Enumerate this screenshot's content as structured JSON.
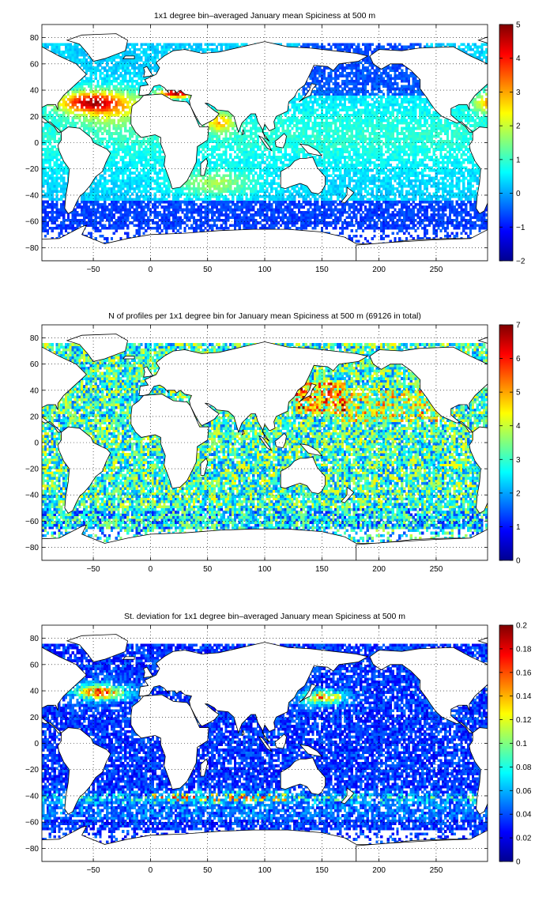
{
  "figure": {
    "background": "#ffffff",
    "colormap": "jet",
    "land_color": "#ffffff",
    "coastline_color": "#000000",
    "grid": "dotted"
  },
  "chart_data": [
    {
      "type": "heatmap",
      "title": "1x1 degree bin–averaged January mean Spiciness at 500 m",
      "xlim": [
        -95,
        295
      ],
      "ylim": [
        -90,
        90
      ],
      "x_ticks": [
        -50,
        0,
        50,
        100,
        150,
        200,
        250
      ],
      "y_ticks": [
        80,
        60,
        40,
        20,
        0,
        -20,
        -40,
        -60,
        -80
      ],
      "x_tick_labels": [
        "−50",
        "0",
        "50",
        "100",
        "150",
        "200",
        "250"
      ],
      "y_tick_labels": [
        "80",
        "60",
        "40",
        "20",
        "0",
        "−20",
        "−40",
        "−60",
        "−80"
      ],
      "colorbar": {
        "range": [
          -2,
          5
        ],
        "ticks": [
          5,
          4,
          3,
          2,
          1,
          0,
          -1,
          -2
        ],
        "tick_labels": [
          "5",
          "4",
          "3",
          "2",
          "1",
          "0",
          "−1",
          "−2"
        ]
      },
      "grid": true
    },
    {
      "type": "heatmap",
      "title": "N of profiles per 1x1 degree bin for January mean Spiciness at 500 m (69126 in total)",
      "xlim": [
        -95,
        295
      ],
      "ylim": [
        -90,
        90
      ],
      "x_ticks": [
        -50,
        0,
        50,
        100,
        150,
        200,
        250
      ],
      "y_ticks": [
        80,
        60,
        40,
        20,
        0,
        -20,
        -40,
        -60,
        -80
      ],
      "x_tick_labels": [
        "−50",
        "0",
        "50",
        "100",
        "150",
        "200",
        "250"
      ],
      "y_tick_labels": [
        "80",
        "60",
        "40",
        "20",
        "0",
        "−20",
        "−40",
        "−60",
        "−80"
      ],
      "colorbar": {
        "range": [
          0,
          7
        ],
        "ticks": [
          7,
          6,
          5,
          4,
          3,
          2,
          1,
          0
        ],
        "tick_labels": [
          "7",
          "6",
          "5",
          "4",
          "3",
          "2",
          "1",
          "0"
        ]
      },
      "grid": true
    },
    {
      "type": "heatmap",
      "title": "St. deviation for 1x1 degree bin–averaged January mean Spiciness at 500 m",
      "xlim": [
        -95,
        295
      ],
      "ylim": [
        -90,
        90
      ],
      "x_ticks": [
        -50,
        0,
        50,
        100,
        150,
        200,
        250
      ],
      "y_ticks": [
        80,
        60,
        40,
        20,
        0,
        -20,
        -40,
        -60,
        -80
      ],
      "x_tick_labels": [
        "−50",
        "0",
        "50",
        "100",
        "150",
        "200",
        "250"
      ],
      "y_tick_labels": [
        "80",
        "60",
        "40",
        "20",
        "0",
        "−20",
        "−40",
        "−60",
        "−80"
      ],
      "colorbar": {
        "range": [
          0,
          0.2
        ],
        "ticks": [
          0.2,
          0.18,
          0.16,
          0.14,
          0.12,
          0.1,
          0.08,
          0.06,
          0.04,
          0.02,
          0
        ],
        "tick_labels": [
          "0.2",
          "0.18",
          "0.16",
          "0.14",
          "0.12",
          "0.1",
          "0.08",
          "0.06",
          "0.04",
          "0.02",
          "0"
        ]
      },
      "grid": true
    }
  ]
}
